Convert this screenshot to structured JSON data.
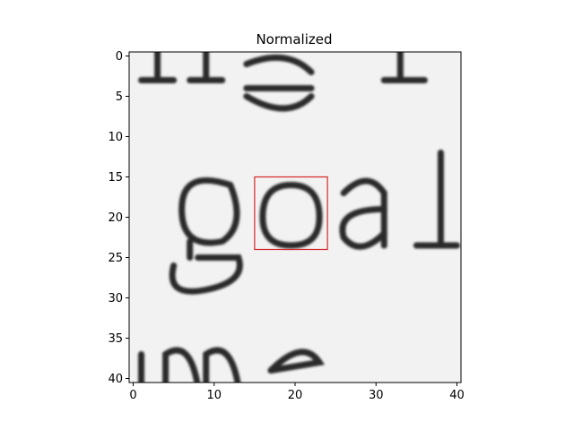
{
  "chart_data": {
    "type": "heatmap",
    "title": "Normalized",
    "xlabel": "",
    "ylabel": "",
    "image_size": 41,
    "xlim": [
      -0.5,
      40.5
    ],
    "ylim": [
      40.5,
      -0.5
    ],
    "xticks": [
      0,
      10,
      20,
      30,
      40
    ],
    "yticks": [
      0,
      5,
      10,
      15,
      20,
      25,
      30,
      35,
      40
    ],
    "xtick_labels": [
      "0",
      "10",
      "20",
      "30",
      "40"
    ],
    "ytick_labels": [
      "0",
      "5",
      "10",
      "15",
      "20",
      "25",
      "30",
      "35",
      "40"
    ],
    "colormap": "gray",
    "content": "grayscale crop of printed text showing the word 'goal' with fragments of letters above and below",
    "highlight_box": {
      "x0": 15,
      "y0": 15,
      "x1": 24,
      "y1": 24,
      "color": "#d62728"
    },
    "grid": false
  }
}
